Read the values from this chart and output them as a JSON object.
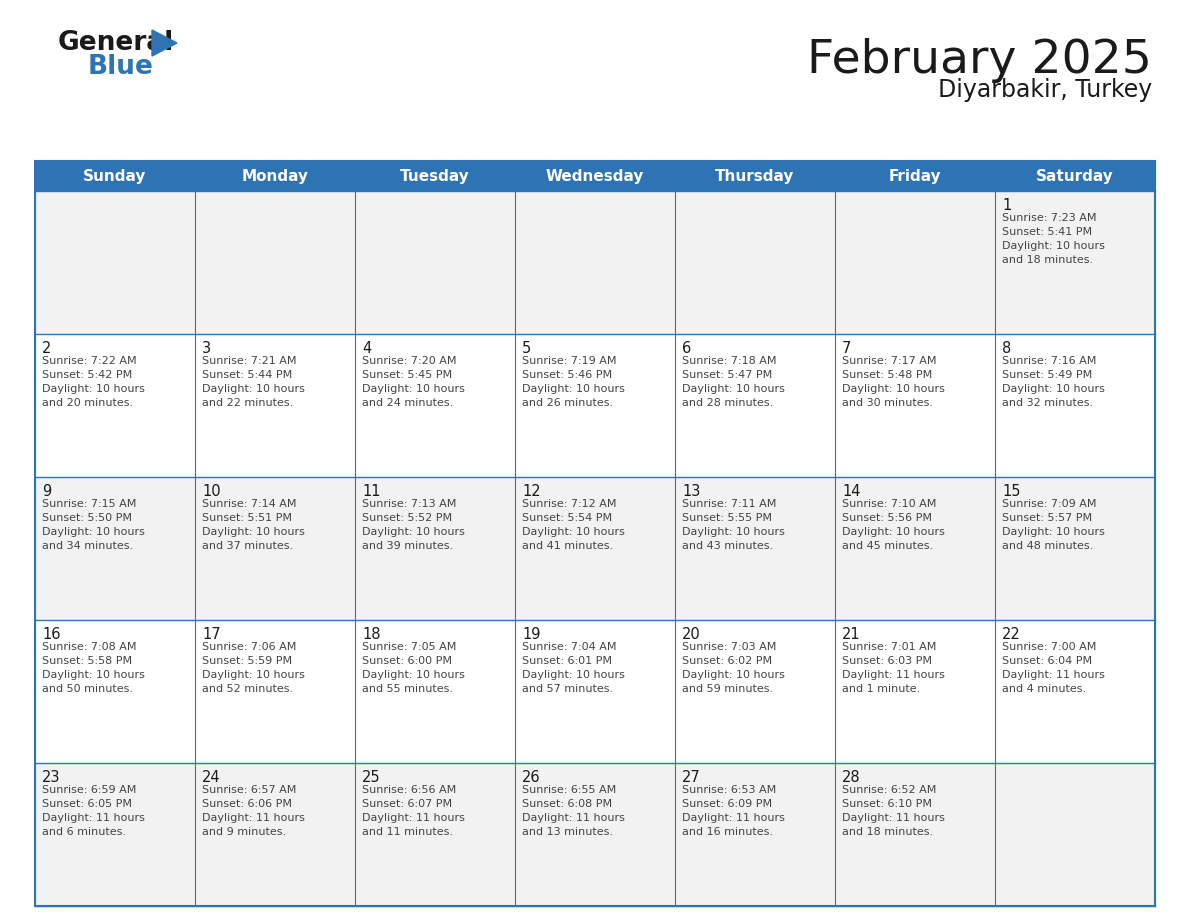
{
  "title": "February 2025",
  "subtitle": "Diyarbakir, Turkey",
  "header_bg": "#2E74B5",
  "header_text_color": "#FFFFFF",
  "cell_bg_light": "#F2F2F2",
  "cell_bg_white": "#FFFFFF",
  "cell_border_color": "#2E74B5",
  "text_color": "#333333",
  "days_of_week": [
    "Sunday",
    "Monday",
    "Tuesday",
    "Wednesday",
    "Thursday",
    "Friday",
    "Saturday"
  ],
  "calendar_data": [
    [
      null,
      null,
      null,
      null,
      null,
      null,
      {
        "day": "1",
        "sunrise": "7:23 AM",
        "sunset": "5:41 PM",
        "daylight_h": "10 hours",
        "daylight_m": "and 18 minutes."
      }
    ],
    [
      {
        "day": "2",
        "sunrise": "7:22 AM",
        "sunset": "5:42 PM",
        "daylight_h": "10 hours",
        "daylight_m": "and 20 minutes."
      },
      {
        "day": "3",
        "sunrise": "7:21 AM",
        "sunset": "5:44 PM",
        "daylight_h": "10 hours",
        "daylight_m": "and 22 minutes."
      },
      {
        "day": "4",
        "sunrise": "7:20 AM",
        "sunset": "5:45 PM",
        "daylight_h": "10 hours",
        "daylight_m": "and 24 minutes."
      },
      {
        "day": "5",
        "sunrise": "7:19 AM",
        "sunset": "5:46 PM",
        "daylight_h": "10 hours",
        "daylight_m": "and 26 minutes."
      },
      {
        "day": "6",
        "sunrise": "7:18 AM",
        "sunset": "5:47 PM",
        "daylight_h": "10 hours",
        "daylight_m": "and 28 minutes."
      },
      {
        "day": "7",
        "sunrise": "7:17 AM",
        "sunset": "5:48 PM",
        "daylight_h": "10 hours",
        "daylight_m": "and 30 minutes."
      },
      {
        "day": "8",
        "sunrise": "7:16 AM",
        "sunset": "5:49 PM",
        "daylight_h": "10 hours",
        "daylight_m": "and 32 minutes."
      }
    ],
    [
      {
        "day": "9",
        "sunrise": "7:15 AM",
        "sunset": "5:50 PM",
        "daylight_h": "10 hours",
        "daylight_m": "and 34 minutes."
      },
      {
        "day": "10",
        "sunrise": "7:14 AM",
        "sunset": "5:51 PM",
        "daylight_h": "10 hours",
        "daylight_m": "and 37 minutes."
      },
      {
        "day": "11",
        "sunrise": "7:13 AM",
        "sunset": "5:52 PM",
        "daylight_h": "10 hours",
        "daylight_m": "and 39 minutes."
      },
      {
        "day": "12",
        "sunrise": "7:12 AM",
        "sunset": "5:54 PM",
        "daylight_h": "10 hours",
        "daylight_m": "and 41 minutes."
      },
      {
        "day": "13",
        "sunrise": "7:11 AM",
        "sunset": "5:55 PM",
        "daylight_h": "10 hours",
        "daylight_m": "and 43 minutes."
      },
      {
        "day": "14",
        "sunrise": "7:10 AM",
        "sunset": "5:56 PM",
        "daylight_h": "10 hours",
        "daylight_m": "and 45 minutes."
      },
      {
        "day": "15",
        "sunrise": "7:09 AM",
        "sunset": "5:57 PM",
        "daylight_h": "10 hours",
        "daylight_m": "and 48 minutes."
      }
    ],
    [
      {
        "day": "16",
        "sunrise": "7:08 AM",
        "sunset": "5:58 PM",
        "daylight_h": "10 hours",
        "daylight_m": "and 50 minutes."
      },
      {
        "day": "17",
        "sunrise": "7:06 AM",
        "sunset": "5:59 PM",
        "daylight_h": "10 hours",
        "daylight_m": "and 52 minutes."
      },
      {
        "day": "18",
        "sunrise": "7:05 AM",
        "sunset": "6:00 PM",
        "daylight_h": "10 hours",
        "daylight_m": "and 55 minutes."
      },
      {
        "day": "19",
        "sunrise": "7:04 AM",
        "sunset": "6:01 PM",
        "daylight_h": "10 hours",
        "daylight_m": "and 57 minutes."
      },
      {
        "day": "20",
        "sunrise": "7:03 AM",
        "sunset": "6:02 PM",
        "daylight_h": "10 hours",
        "daylight_m": "and 59 minutes."
      },
      {
        "day": "21",
        "sunrise": "7:01 AM",
        "sunset": "6:03 PM",
        "daylight_h": "11 hours",
        "daylight_m": "and 1 minute."
      },
      {
        "day": "22",
        "sunrise": "7:00 AM",
        "sunset": "6:04 PM",
        "daylight_h": "11 hours",
        "daylight_m": "and 4 minutes."
      }
    ],
    [
      {
        "day": "23",
        "sunrise": "6:59 AM",
        "sunset": "6:05 PM",
        "daylight_h": "11 hours",
        "daylight_m": "and 6 minutes."
      },
      {
        "day": "24",
        "sunrise": "6:57 AM",
        "sunset": "6:06 PM",
        "daylight_h": "11 hours",
        "daylight_m": "and 9 minutes."
      },
      {
        "day": "25",
        "sunrise": "6:56 AM",
        "sunset": "6:07 PM",
        "daylight_h": "11 hours",
        "daylight_m": "and 11 minutes."
      },
      {
        "day": "26",
        "sunrise": "6:55 AM",
        "sunset": "6:08 PM",
        "daylight_h": "11 hours",
        "daylight_m": "and 13 minutes."
      },
      {
        "day": "27",
        "sunrise": "6:53 AM",
        "sunset": "6:09 PM",
        "daylight_h": "11 hours",
        "daylight_m": "and 16 minutes."
      },
      {
        "day": "28",
        "sunrise": "6:52 AM",
        "sunset": "6:10 PM",
        "daylight_h": "11 hours",
        "daylight_m": "and 18 minutes."
      },
      null
    ]
  ],
  "logo_general_color": "#1a1a1a",
  "logo_blue_color": "#2E74B5",
  "logo_triangle_color": "#2E74B5"
}
